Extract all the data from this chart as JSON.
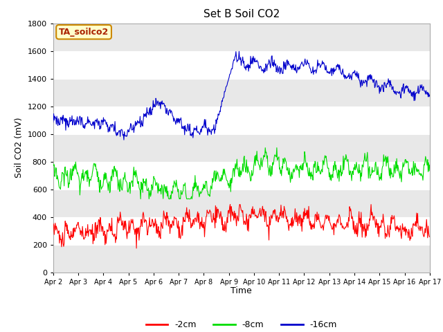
{
  "title": "Set B Soil CO2",
  "ylabel": "Soil CO2 (mV)",
  "xlabel": "Time",
  "annotation": "TA_soilco2",
  "bg_color": "#ffffff",
  "ylim": [
    0,
    1800
  ],
  "yticks": [
    0,
    200,
    400,
    600,
    800,
    1000,
    1200,
    1400,
    1600,
    1800
  ],
  "band_colors": [
    "#e8e8e8",
    "#ffffff",
    "#e8e8e8",
    "#ffffff",
    "#e8e8e8",
    "#ffffff",
    "#e8e8e8",
    "#ffffff",
    "#e8e8e8"
  ],
  "x_labels": [
    "Apr 2",
    "Apr 3",
    "Apr 4",
    "Apr 5",
    "Apr 6",
    "Apr 7",
    "Apr 8",
    "Apr 9",
    "Apr 10",
    "Apr 11",
    "Apr 12",
    "Apr 13",
    "Apr 14",
    "Apr 15",
    "Apr 16",
    "Apr 17"
  ],
  "colors": {
    "red": "#ff0000",
    "green": "#00dd00",
    "blue": "#0000cc"
  },
  "legend_labels": [
    "-2cm",
    "-8cm",
    "-16cm"
  ],
  "n_days": 15,
  "n_per_day": 48
}
